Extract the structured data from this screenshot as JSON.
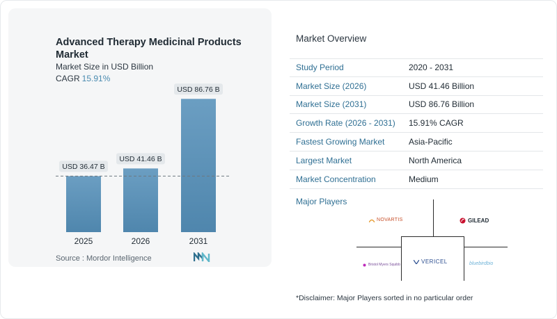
{
  "chart_data": {
    "type": "bar",
    "title": "Advanced Therapy Medicinal Products Market",
    "subtitle": "Market Size in USD Billion",
    "cagr_label": "CAGR",
    "cagr_value": "15.91%",
    "categories": [
      "2025",
      "2026",
      "2031"
    ],
    "values": [
      36.47,
      41.46,
      86.76
    ],
    "value_labels": [
      "USD 36.47 B",
      "USD 41.46 B",
      "USD 86.76 B"
    ],
    "reference_line_value": 36.47,
    "ylim": [
      0,
      100
    ],
    "grid": false,
    "colors": {
      "bar_top": "#6b9ec2",
      "bar_bottom": "#4f86ad"
    }
  },
  "source": "Source :  Mordor Intelligence",
  "overview": {
    "title": "Market Overview",
    "rows": [
      {
        "label": "Study Period",
        "value": "2020 - 2031"
      },
      {
        "label": "Market Size (2026)",
        "value": "USD 41.46 Billion"
      },
      {
        "label": "Market Size (2031)",
        "value": "USD 86.76 Billion"
      },
      {
        "label": "Growth Rate (2026 - 2031)",
        "value": "15.91% CAGR"
      },
      {
        "label": "Fastest Growing Market",
        "value": "Asia-Pacific"
      },
      {
        "label": "Largest Market",
        "value": "North America"
      },
      {
        "label": "Market Concentration",
        "value": "Medium"
      }
    ]
  },
  "players": {
    "title": "Major Players",
    "logos": [
      "NOVARTIS",
      "GILEAD",
      "VERICEL",
      "Bristol Myers Squibb",
      "bluebirdbio"
    ]
  },
  "disclaimer": "*Disclaimer: Major Players sorted in no particular order",
  "colors": {
    "accent": "#2f6f93",
    "cagr": "#4a8bb0"
  }
}
